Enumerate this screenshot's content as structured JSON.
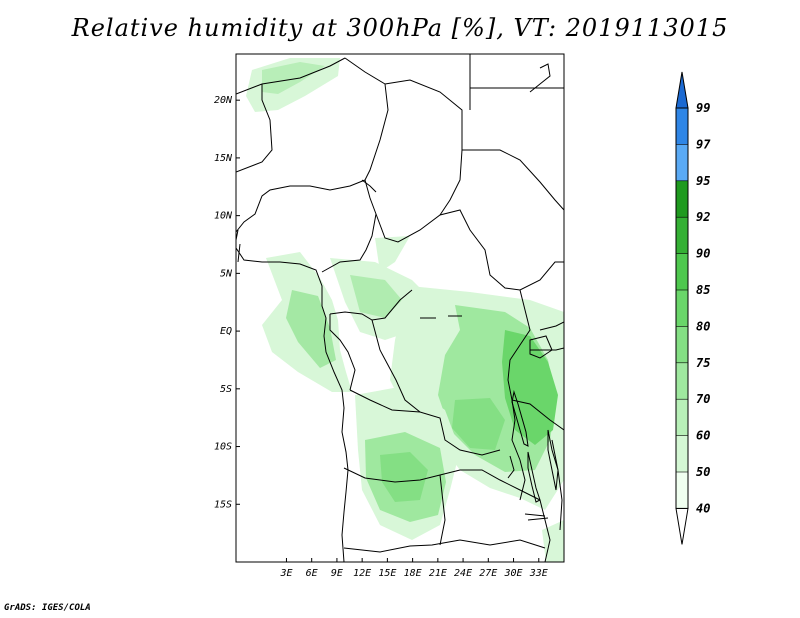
{
  "title": "Relative humidity at 300hPa [%], VT: 2019113015",
  "credit": "GrADS: IGES/COLA",
  "map": {
    "lon_range": [
      -3,
      36
    ],
    "lat_range": [
      -20,
      24
    ],
    "lat_ticks": [
      "20N",
      "15N",
      "10N",
      "5N",
      "EQ",
      "5S",
      "10S",
      "15S"
    ],
    "lon_ticks": [
      "3E",
      "6E",
      "9E",
      "12E",
      "15E",
      "18E",
      "21E",
      "24E",
      "27E",
      "30E",
      "33E"
    ]
  },
  "colorbar": {
    "labels": [
      "40",
      "50",
      "60",
      "70",
      "75",
      "80",
      "85",
      "90",
      "92",
      "95",
      "97",
      "99"
    ],
    "colors": [
      "#f0fff0",
      "#d4f7d4",
      "#b8f0b8",
      "#9fe89f",
      "#84df84",
      "#6ad66a",
      "#4ec84e",
      "#34b034",
      "#1f9a1f",
      "#5aaaf5",
      "#2f86e6",
      "#1c6ad2"
    ]
  }
}
